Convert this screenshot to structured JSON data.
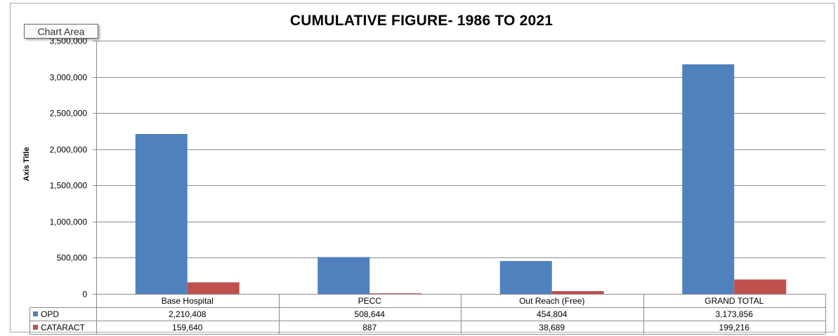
{
  "window": {
    "tooltip": "Chart Area"
  },
  "chart_data": {
    "type": "bar",
    "title": "CUMULATIVE FIGURE- 1986 TO 2021",
    "xlabel": "",
    "ylabel": "Axis Title",
    "categories": [
      "Base Hospital",
      "PECC",
      "Out Reach (Free)",
      "GRAND TOTAL"
    ],
    "series": [
      {
        "name": "OPD",
        "color": "#4f81bd",
        "values": [
          2210408,
          508644,
          454804,
          3173856
        ],
        "labels": [
          "2,210,408",
          "508,644",
          "454,804",
          "3,173,856"
        ]
      },
      {
        "name": "CATARACT",
        "color": "#c0504d",
        "values": [
          159640,
          887,
          38689,
          199216
        ],
        "labels": [
          "159,640",
          "887",
          "38,689",
          "199,216"
        ]
      }
    ],
    "ylim": [
      0,
      3500000
    ],
    "yticks": [
      0,
      500000,
      1000000,
      1500000,
      2000000,
      2500000,
      3000000,
      3500000
    ],
    "ytick_labels": [
      "0",
      "500,000",
      "1,000,000",
      "1,500,000",
      "2,000,000",
      "2,500,000",
      "3,000,000",
      "3,500,000"
    ],
    "grid": true,
    "legend": "data-table"
  }
}
